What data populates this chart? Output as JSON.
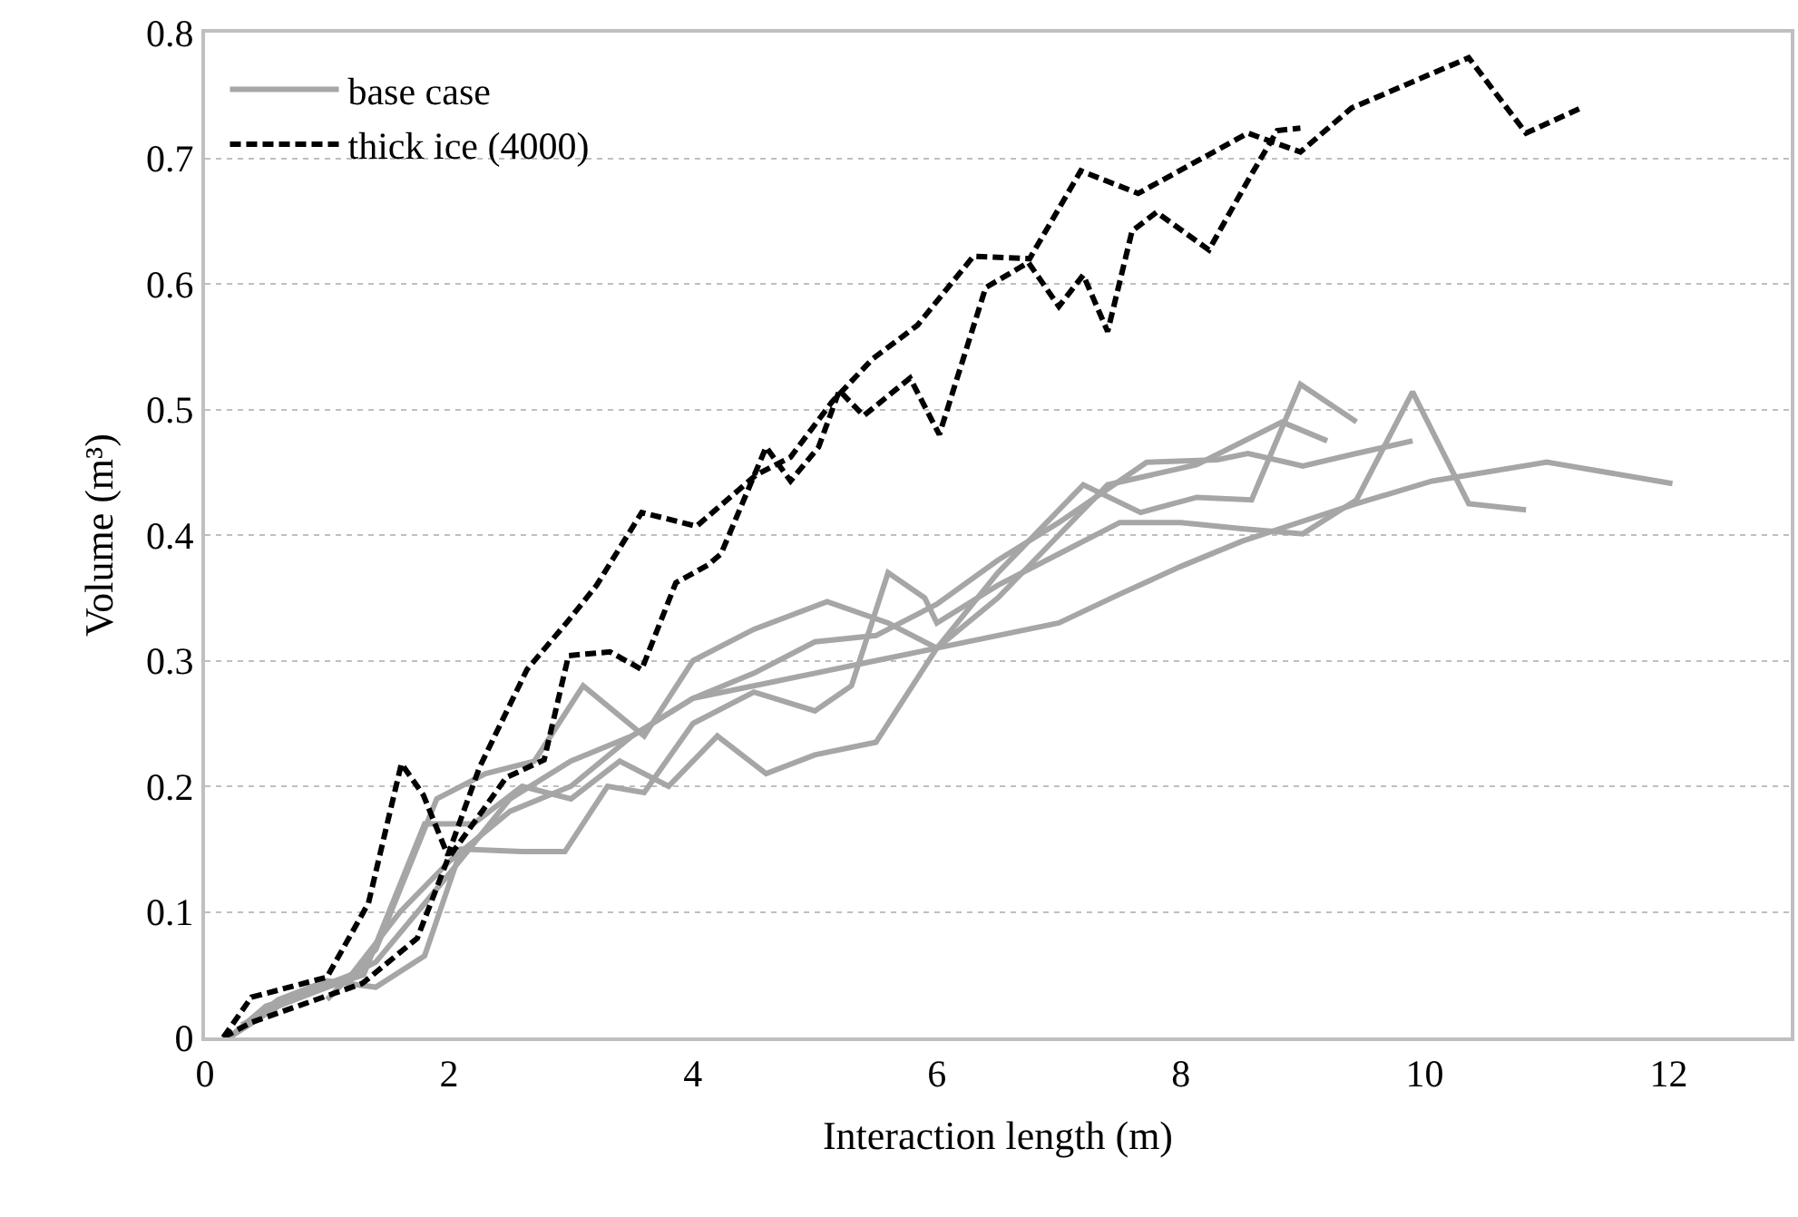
{
  "chart_data": {
    "type": "line",
    "xlabel": "Interaction length (m)",
    "ylabel": "Volume (m³)",
    "xlim": [
      0,
      13
    ],
    "xticks": [
      0,
      2,
      4,
      6,
      8,
      10,
      12
    ],
    "ylim": [
      0,
      0.8
    ],
    "yticks": [
      0,
      0.1,
      0.2,
      0.3,
      0.4,
      0.5,
      0.6,
      0.7,
      0.8
    ],
    "grid": "y",
    "legend": "top left",
    "series": [
      {
        "name": "base case",
        "color": "#a6a6a6",
        "line_style": "solid",
        "x": [
          0.2,
          0.5,
          1.0,
          1.4,
          2.0,
          2.5,
          3.0,
          3.5,
          4.0,
          4.5,
          5.0,
          5.5,
          6.0,
          7.0,
          7.5,
          8.0,
          8.5,
          9.0,
          9.44,
          10.06,
          11.0,
          12.03
        ],
        "values": [
          0,
          0.025,
          0.04,
          0.06,
          0.13,
          0.19,
          0.22,
          0.24,
          0.27,
          0.28,
          0.29,
          0.3,
          0.31,
          0.33,
          0.353,
          0.375,
          0.395,
          0.411,
          0.425,
          0.443,
          0.458,
          0.441
        ]
      },
      {
        "color": "#a6a6a6",
        "line_style": "solid",
        "x": [
          0.2,
          0.6,
          1.0,
          1.4,
          1.8,
          2.1,
          2.6,
          2.95,
          3.3,
          3.6,
          4.0,
          4.5,
          5.0,
          5.3,
          5.6,
          5.9,
          6.0,
          6.5,
          7.0,
          7.5,
          8.0,
          8.5,
          9.0,
          9.44,
          9.9,
          10.36,
          10.83
        ],
        "values": [
          0,
          0.03,
          0.045,
          0.04,
          0.065,
          0.15,
          0.148,
          0.148,
          0.2,
          0.195,
          0.25,
          0.275,
          0.26,
          0.28,
          0.37,
          0.35,
          0.33,
          0.36,
          0.385,
          0.41,
          0.41,
          0.405,
          0.401,
          0.428,
          0.514,
          0.425,
          0.42
        ]
      },
      {
        "color": "#a6a6a6",
        "line_style": "solid",
        "x": [
          0.2,
          0.6,
          1.0,
          1.3,
          1.8,
          2.2,
          2.6,
          3.0,
          3.4,
          3.8,
          4.2,
          4.6,
          5.0,
          5.5,
          6.0,
          6.5,
          7.2,
          7.67,
          8.13,
          8.58,
          8.98,
          9.44
        ],
        "values": [
          0,
          0.025,
          0.04,
          0.05,
          0.17,
          0.17,
          0.2,
          0.19,
          0.22,
          0.2,
          0.24,
          0.21,
          0.225,
          0.235,
          0.31,
          0.37,
          0.44,
          0.418,
          0.43,
          0.428,
          0.52,
          0.49
        ]
      },
      {
        "color": "#a6a6a6",
        "line_style": "solid",
        "x": [
          1.0,
          1.4,
          1.9,
          2.3,
          2.7,
          3.1,
          3.6,
          4.0,
          4.5,
          5.1,
          5.6,
          6.0,
          6.5,
          7.0,
          7.4,
          8.13,
          8.83,
          9.2
        ],
        "values": [
          0.03,
          0.07,
          0.19,
          0.21,
          0.22,
          0.28,
          0.24,
          0.3,
          0.325,
          0.347,
          0.33,
          0.31,
          0.35,
          0.4,
          0.44,
          0.456,
          0.49,
          0.475
        ]
      },
      {
        "color": "#a6a6a6",
        "line_style": "solid",
        "x": [
          0.3,
          0.8,
          1.2,
          1.6,
          2.0,
          2.5,
          3.0,
          3.5,
          4.0,
          4.5,
          5.0,
          5.5,
          6.0,
          6.5,
          7.0,
          7.72,
          8.3,
          8.55,
          9.0,
          9.44,
          9.9
        ],
        "values": [
          0.01,
          0.035,
          0.05,
          0.1,
          0.14,
          0.18,
          0.2,
          0.24,
          0.27,
          0.29,
          0.315,
          0.32,
          0.345,
          0.38,
          0.41,
          0.458,
          0.46,
          0.465,
          0.455,
          0.465,
          0.475
        ]
      },
      {
        "name": "thick ice (4000)",
        "color": "#000000",
        "line_style": "dashed",
        "x": [
          0.15,
          0.38,
          1.0,
          1.34,
          1.61,
          1.79,
          1.99,
          2.25,
          2.64,
          2.98,
          3.21,
          3.58,
          4.03,
          4.52,
          4.8,
          5.14,
          5.47,
          5.84,
          6.3,
          6.76,
          7.18,
          7.65,
          8.55,
          8.98,
          9.4,
          10.36,
          10.83,
          11.28
        ],
        "values": [
          0,
          0.032,
          0.048,
          0.107,
          0.218,
          0.193,
          0.145,
          0.215,
          0.293,
          0.332,
          0.36,
          0.418,
          0.407,
          0.448,
          0.462,
          0.506,
          0.54,
          0.567,
          0.622,
          0.62,
          0.69,
          0.672,
          0.72,
          0.705,
          0.74,
          0.78,
          0.72,
          0.74
        ]
      },
      {
        "color": "#000000",
        "line_style": "dashed",
        "x": [
          0.15,
          0.38,
          1.29,
          1.74,
          1.99,
          2.47,
          2.78,
          2.98,
          3.32,
          3.58,
          3.86,
          4.12,
          4.23,
          4.6,
          4.8,
          5.03,
          5.2,
          5.4,
          5.78,
          6.02,
          6.4,
          6.75,
          7.0,
          7.2,
          7.4,
          7.6,
          7.8,
          8.23,
          8.56,
          8.79,
          8.98
        ],
        "values": [
          0,
          0.012,
          0.043,
          0.079,
          0.142,
          0.207,
          0.221,
          0.304,
          0.307,
          0.293,
          0.362,
          0.376,
          0.385,
          0.47,
          0.443,
          0.47,
          0.515,
          0.495,
          0.525,
          0.48,
          0.597,
          0.617,
          0.582,
          0.607,
          0.562,
          0.642,
          0.657,
          0.627,
          0.684,
          0.722,
          0.724
        ]
      }
    ]
  }
}
